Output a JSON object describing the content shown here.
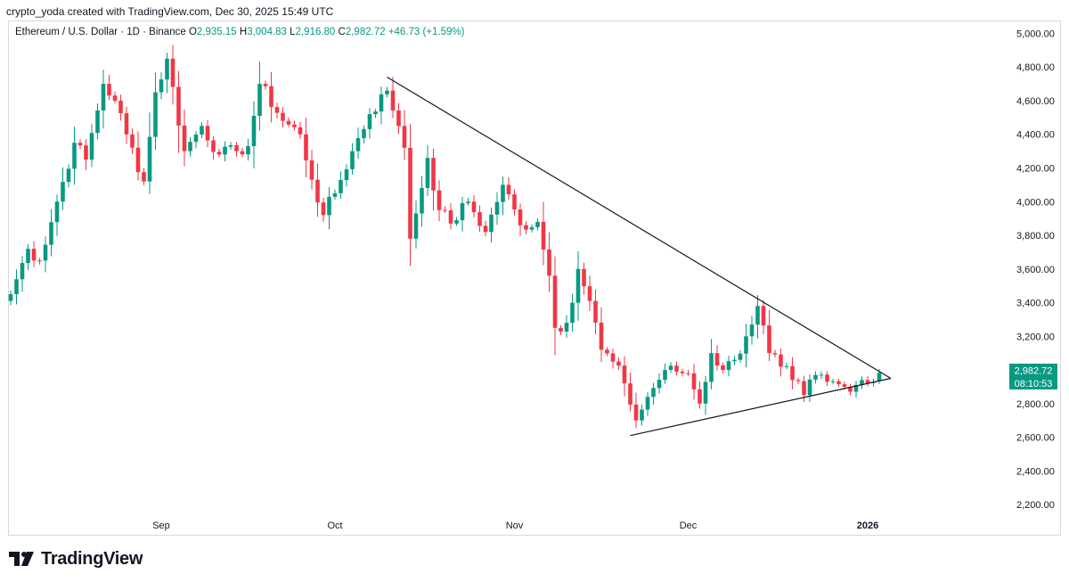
{
  "header": {
    "caption": "crypto_yoda created with TradingView.com, Dec 30, 2025 15:49 UTC"
  },
  "legend": {
    "symbol": "Ethereum / U.S. Dollar · 1D · Binance",
    "open_label": "O",
    "open": "2,935.15",
    "high_label": "H",
    "high": "3,004.83",
    "low_label": "L",
    "low": "2,916.80",
    "close_label": "C",
    "close": "2,982.72",
    "change": "+46.73 (+1.59%)"
  },
  "price_badge": {
    "price": "2,982.72",
    "countdown": "08:10:53"
  },
  "footer": {
    "brand": "TradingView"
  },
  "colors": {
    "up": "#089981",
    "down": "#f23645",
    "trendline": "#131722",
    "text": "#131722"
  },
  "chart_data": {
    "type": "candlestick",
    "title": "Ethereum / U.S. Dollar · 1D · Binance",
    "ylim": [
      2100,
      5050
    ],
    "y_ticks": [
      2200,
      2400,
      2600,
      2800,
      3000,
      3200,
      3400,
      3600,
      3800,
      4000,
      4200,
      4400,
      4600,
      4800,
      5000
    ],
    "y_tick_labels": [
      "2,200.00",
      "2,400.00",
      "2,600.00",
      "2,800.00",
      "3,000.00",
      "3,200.00",
      "3,400.00",
      "3,600.00",
      "3,800.00",
      "4,000.00",
      "4,200.00",
      "4,400.00",
      "4,600.00",
      "4,800.00",
      "5,000.00"
    ],
    "x_ticks": [
      {
        "label": "Sep",
        "day": 26,
        "bold": false
      },
      {
        "label": "Oct",
        "day": 56,
        "bold": false
      },
      {
        "label": "Nov",
        "day": 87,
        "bold": false
      },
      {
        "label": "Dec",
        "day": 117,
        "bold": false
      },
      {
        "label": "2026",
        "day": 148,
        "bold": true
      }
    ],
    "day_count": 153,
    "anchors": [
      [
        0,
        3450
      ],
      [
        3,
        3720
      ],
      [
        5,
        3650
      ],
      [
        8,
        4000
      ],
      [
        11,
        4350
      ],
      [
        13,
        4250
      ],
      [
        16,
        4700
      ],
      [
        18,
        4600
      ],
      [
        20,
        4400
      ],
      [
        23,
        4120
      ],
      [
        25,
        4650
      ],
      [
        27,
        4850
      ],
      [
        30,
        4300
      ],
      [
        33,
        4450
      ],
      [
        36,
        4280
      ],
      [
        39,
        4300
      ],
      [
        41,
        4330
      ],
      [
        43,
        4700
      ],
      [
        47,
        4480
      ],
      [
        50,
        4400
      ],
      [
        52,
        4130
      ],
      [
        54,
        3920
      ],
      [
        56,
        4050
      ],
      [
        59,
        4300
      ],
      [
        62,
        4520
      ],
      [
        65,
        4660
      ],
      [
        67,
        4450
      ],
      [
        68,
        4320
      ],
      [
        69,
        3780
      ],
      [
        70,
        3930
      ],
      [
        72,
        4260
      ],
      [
        74,
        3950
      ],
      [
        76,
        3870
      ],
      [
        79,
        4000
      ],
      [
        82,
        3820
      ],
      [
        85,
        4100
      ],
      [
        88,
        3860
      ],
      [
        91,
        3880
      ],
      [
        93,
        3560
      ],
      [
        94,
        3250
      ],
      [
        96,
        3280
      ],
      [
        98,
        3600
      ],
      [
        100,
        3410
      ],
      [
        102,
        3120
      ],
      [
        104,
        3050
      ],
      [
        106,
        2920
      ],
      [
        108,
        2700
      ],
      [
        110,
        2840
      ],
      [
        113,
        3000
      ],
      [
        115,
        2990
      ],
      [
        117,
        2980
      ],
      [
        119,
        2800
      ],
      [
        121,
        3100
      ],
      [
        123,
        3000
      ],
      [
        125,
        3060
      ],
      [
        127,
        3200
      ],
      [
        129,
        3380
      ],
      [
        131,
        3100
      ],
      [
        133,
        3020
      ],
      [
        135,
        2940
      ],
      [
        137,
        2850
      ],
      [
        139,
        2970
      ],
      [
        141,
        2930
      ],
      [
        144,
        2900
      ],
      [
        147,
        2940
      ],
      [
        149,
        2930
      ],
      [
        150,
        2985
      ]
    ],
    "last_candle": {
      "open": 2935.15,
      "high": 3004.83,
      "low": 2916.8,
      "close": 2982.72
    },
    "trendlines": [
      {
        "name": "upper-resistance",
        "from": {
          "day": 65,
          "price": 4740
        },
        "to": {
          "day": 152,
          "price": 2950
        }
      },
      {
        "name": "lower-support",
        "from": {
          "day": 107,
          "price": 2610
        },
        "to": {
          "day": 152,
          "price": 2950
        }
      }
    ]
  }
}
